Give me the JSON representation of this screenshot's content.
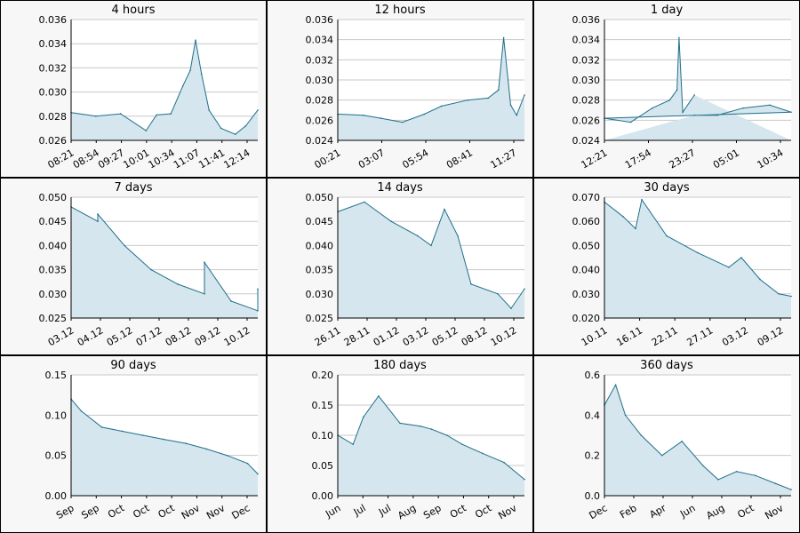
{
  "colors": {
    "line": "#1f6f8b",
    "fill": "#d5e6ee",
    "grid": "#c8c8c8",
    "axis": "#000000",
    "panel_background": "#f7f7f7",
    "plot_background": "#ffffff",
    "border": "#000000"
  },
  "chart_data": [
    {
      "type": "area",
      "title": "4 hours",
      "ylim": [
        0.026,
        0.036
      ],
      "y_ticks": [
        "0.026",
        "0.028",
        "0.030",
        "0.032",
        "0.034",
        "0.036"
      ],
      "x_ticks": [
        "08:21",
        "08:54",
        "09:27",
        "10:01",
        "10:34",
        "11:07",
        "11:41",
        "12:14"
      ],
      "grid": true,
      "x": [
        "08:21",
        "08:54",
        "09:27",
        "10:01",
        "10:15",
        "10:34",
        "10:50",
        "11:00",
        "11:07",
        "11:15",
        "11:25",
        "11:41",
        "12:00",
        "12:14",
        "12:30"
      ],
      "y": [
        0.0283,
        0.028,
        0.0282,
        0.0268,
        0.0281,
        0.0282,
        0.0305,
        0.0318,
        0.0343,
        0.0315,
        0.0285,
        0.027,
        0.0265,
        0.0272,
        0.0285
      ]
    },
    {
      "type": "area",
      "title": "12 hours",
      "ylim": [
        0.024,
        0.036
      ],
      "y_ticks": [
        "0.024",
        "0.026",
        "0.028",
        "0.030",
        "0.032",
        "0.034",
        "0.036"
      ],
      "x_ticks": [
        "00:21",
        "03:07",
        "05:54",
        "08:41",
        "11:27"
      ],
      "grid": true,
      "x": [
        "00:21",
        "02:00",
        "03:07",
        "04:30",
        "05:54",
        "07:00",
        "08:41",
        "10:00",
        "10:40",
        "11:00",
        "11:27",
        "11:50",
        "12:20"
      ],
      "y": [
        0.0266,
        0.0265,
        0.0262,
        0.0258,
        0.0266,
        0.0274,
        0.028,
        0.0282,
        0.029,
        0.0342,
        0.0275,
        0.0265,
        0.0285
      ]
    },
    {
      "type": "area",
      "title": "1 day",
      "ylim": [
        0.024,
        0.036
      ],
      "y_ticks": [
        "0.024",
        "0.026",
        "0.028",
        "0.030",
        "0.032",
        "0.034",
        "0.036"
      ],
      "x_ticks": [
        "12:21",
        "17:54",
        "23:27",
        "05:01",
        "10:34"
      ],
      "grid": true,
      "x": [
        "12:21",
        "15:00",
        "17:54",
        "21:00",
        "23:27",
        "02:00",
        "05:01",
        "07:30",
        "09:30",
        "10:20",
        "10:34",
        "11:00",
        "12:20"
      ],
      "y": [
        0.0265,
        0.0265,
        0.0272,
        0.0275,
        0.0268,
        0.0262,
        0.0258,
        0.0272,
        0.028,
        0.029,
        0.0342,
        0.0268,
        0.0285
      ]
    },
    {
      "type": "area",
      "title": "7 days",
      "ylim": [
        0.025,
        0.05
      ],
      "y_ticks": [
        "0.025",
        "0.030",
        "0.035",
        "0.040",
        "0.045",
        "0.050"
      ],
      "x_ticks": [
        "03.12",
        "04.12",
        "05.12",
        "07.12",
        "08.12",
        "09.12",
        "10.12"
      ],
      "grid": true,
      "x": [
        "2024-12-03",
        "2024-12-04",
        "2024-12-04",
        "2024-12-05",
        "2024-12-06",
        "2024-12-07",
        "2024-12-08",
        "2024-12-08",
        "2024-12-09",
        "2024-12-10",
        "2024-12-10"
      ],
      "y": [
        0.048,
        0.045,
        0.0465,
        0.04,
        0.035,
        0.032,
        0.03,
        0.0365,
        0.0285,
        0.0265,
        0.031
      ]
    },
    {
      "type": "area",
      "title": "14 days",
      "ylim": [
        0.025,
        0.05
      ],
      "y_ticks": [
        "0.025",
        "0.030",
        "0.035",
        "0.040",
        "0.045",
        "0.050"
      ],
      "x_ticks": [
        "26.11",
        "28.11",
        "01.12",
        "03.12",
        "05.12",
        "08.12",
        "10.12"
      ],
      "grid": true,
      "x": [
        "2024-11-26",
        "2024-11-28",
        "2024-11-30",
        "2024-12-02",
        "2024-12-03",
        "2024-12-04",
        "2024-12-05",
        "2024-12-06",
        "2024-12-08",
        "2024-12-09",
        "2024-12-10"
      ],
      "y": [
        0.047,
        0.049,
        0.045,
        0.042,
        0.04,
        0.0475,
        0.042,
        0.032,
        0.03,
        0.027,
        0.031
      ]
    },
    {
      "type": "area",
      "title": "30 days",
      "ylim": [
        0.02,
        0.07
      ],
      "y_ticks": [
        "0.020",
        "0.030",
        "0.040",
        "0.050",
        "0.060",
        "0.070"
      ],
      "x_ticks": [
        "10.11",
        "16.11",
        "22.11",
        "27.11",
        "03.12",
        "09.12"
      ],
      "grid": true,
      "x": [
        "2024-11-10",
        "2024-11-13",
        "2024-11-15",
        "2024-11-16",
        "2024-11-20",
        "2024-11-25",
        "2024-11-30",
        "2024-12-02",
        "2024-12-05",
        "2024-12-08",
        "2024-12-10"
      ],
      "y": [
        0.068,
        0.062,
        0.057,
        0.069,
        0.054,
        0.047,
        0.041,
        0.045,
        0.036,
        0.03,
        0.029
      ]
    },
    {
      "type": "area",
      "title": "90 days",
      "ylim": [
        0.0,
        0.15
      ],
      "y_ticks": [
        "0.00",
        "0.05",
        "0.10",
        "0.15"
      ],
      "x_ticks": [
        "Sep",
        "Sep",
        "Oct",
        "Oct",
        "Oct",
        "Nov",
        "Nov",
        "Dec"
      ],
      "grid": true,
      "x": [
        "2024-09-10",
        "2024-09-15",
        "2024-09-25",
        "2024-10-05",
        "2024-10-15",
        "2024-10-25",
        "2024-11-05",
        "2024-11-15",
        "2024-11-25",
        "2024-12-05",
        "2024-12-10"
      ],
      "y": [
        0.12,
        0.105,
        0.085,
        0.08,
        0.075,
        0.07,
        0.065,
        0.058,
        0.05,
        0.04,
        0.027
      ]
    },
    {
      "type": "area",
      "title": "180 days",
      "ylim": [
        0.0,
        0.2
      ],
      "y_ticks": [
        "0.00",
        "0.05",
        "0.10",
        "0.15",
        "0.20"
      ],
      "x_ticks": [
        "Jun",
        "Jul",
        "Jul",
        "Aug",
        "Sep",
        "Oct",
        "Oct",
        "Nov"
      ],
      "grid": true,
      "x": [
        "2024-06-10",
        "2024-06-25",
        "2024-07-05",
        "2024-07-20",
        "2024-08-10",
        "2024-08-30",
        "2024-09-10",
        "2024-09-25",
        "2024-10-10",
        "2024-10-30",
        "2024-11-20",
        "2024-12-10"
      ],
      "y": [
        0.1,
        0.085,
        0.13,
        0.165,
        0.12,
        0.115,
        0.11,
        0.1,
        0.085,
        0.07,
        0.055,
        0.027
      ]
    },
    {
      "type": "area",
      "title": "360 days",
      "ylim": [
        0.0,
        0.6
      ],
      "y_ticks": [
        "0.0",
        "0.2",
        "0.4",
        "0.6"
      ],
      "x_ticks": [
        "Dec",
        "Feb",
        "Apr",
        "Jun",
        "Aug",
        "Oct",
        "Nov"
      ],
      "grid": true,
      "x": [
        "2023-12-10",
        "2024-01-01",
        "2024-01-20",
        "2024-02-20",
        "2024-04-01",
        "2024-05-10",
        "2024-06-20",
        "2024-07-20",
        "2024-08-25",
        "2024-10-01",
        "2024-11-10",
        "2024-12-10"
      ],
      "y": [
        0.45,
        0.55,
        0.4,
        0.3,
        0.2,
        0.27,
        0.15,
        0.08,
        0.12,
        0.1,
        0.06,
        0.03
      ]
    }
  ]
}
